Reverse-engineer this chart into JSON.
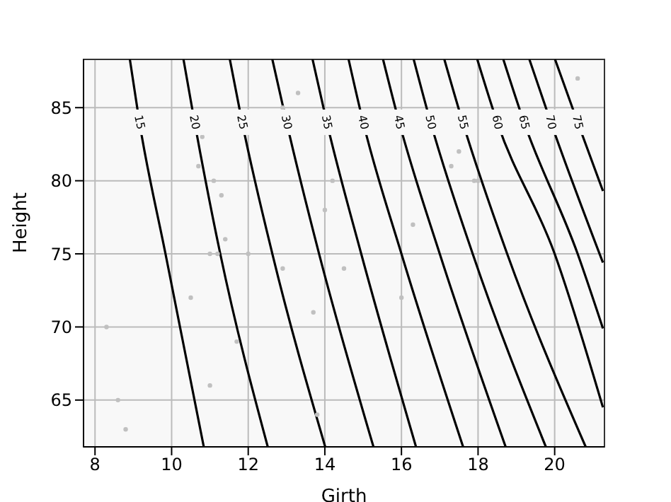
{
  "chart_data": {
    "type": "line",
    "xlabel": "Girth",
    "ylabel": "Height",
    "xlim": [
      7.7,
      21.3
    ],
    "ylim": [
      61.8,
      88.3
    ],
    "xticks": [
      8,
      10,
      12,
      14,
      16,
      18,
      20
    ],
    "yticks": [
      65,
      70,
      75,
      80,
      85
    ],
    "grid": true,
    "legend": false,
    "marker": "none",
    "line_style": "solid",
    "series": [
      {
        "name": "15",
        "color": "#000000",
        "x": [
          8.91,
          9.16,
          9.84,
          10.84
        ],
        "values": [
          88.3,
          84,
          75,
          61.8
        ]
      },
      {
        "name": "20",
        "color": "#000000",
        "x": [
          10.31,
          10.6,
          11.27,
          12.51
        ],
        "values": [
          88.3,
          84,
          75,
          61.8
        ]
      },
      {
        "name": "25",
        "color": "#000000",
        "x": [
          11.52,
          11.84,
          12.63,
          14.01
        ],
        "values": [
          88.3,
          84,
          75,
          61.8
        ]
      },
      {
        "name": "30",
        "color": "#000000",
        "x": [
          12.63,
          13.0,
          13.85,
          15.27
        ],
        "values": [
          88.3,
          84,
          75,
          61.8
        ]
      },
      {
        "name": "35",
        "color": "#000000",
        "x": [
          13.68,
          14.05,
          14.95,
          16.38
        ],
        "values": [
          88.3,
          84,
          75,
          61.8
        ]
      },
      {
        "name": "40",
        "color": "#000000",
        "x": [
          14.62,
          15.0,
          16.0,
          17.61
        ],
        "values": [
          88.3,
          84,
          75,
          61.8
        ]
      },
      {
        "name": "45",
        "color": "#000000",
        "x": [
          15.52,
          15.94,
          17.0,
          18.72
        ],
        "values": [
          88.3,
          84,
          75,
          61.8
        ]
      },
      {
        "name": "50",
        "color": "#000000",
        "x": [
          16.32,
          16.76,
          17.86,
          19.77
        ],
        "values": [
          88.3,
          84,
          75,
          61.8
        ]
      },
      {
        "name": "55",
        "color": "#000000",
        "x": [
          17.12,
          17.6,
          18.76,
          20.81
        ],
        "values": [
          88.3,
          84,
          75,
          61.8
        ]
      },
      {
        "name": "60",
        "color": "#000000",
        "x": [
          17.98,
          18.5,
          20.0,
          21.26
        ],
        "values": [
          88.3,
          84,
          75,
          64.5
        ]
      },
      {
        "name": "65",
        "color": "#000000",
        "x": [
          18.66,
          19.2,
          20.6,
          21.26
        ],
        "values": [
          88.3,
          84,
          75,
          69.9
        ]
      },
      {
        "name": "70",
        "color": "#000000",
        "x": [
          19.34,
          19.9,
          21.26
        ],
        "values": [
          88.3,
          84,
          74.4
        ]
      },
      {
        "name": "75",
        "color": "#000000",
        "x": [
          20.01,
          20.6,
          21.26
        ],
        "values": [
          88.3,
          84,
          79.3
        ]
      },
      {
        "type": "scatter",
        "marker": "circle",
        "color": "#c0c0c0",
        "x": [
          8.3,
          8.6,
          8.8,
          10.5,
          10.7,
          10.8,
          11.0,
          11.0,
          11.1,
          11.2,
          11.3,
          11.4,
          11.7,
          12.0,
          12.9,
          12.9,
          13.3,
          13.7,
          13.8,
          14.0,
          14.2,
          14.5,
          16.0,
          16.3,
          17.3,
          17.5,
          17.9,
          18.0,
          20.6
        ],
        "values": [
          70,
          65,
          63,
          72,
          81,
          83,
          66,
          75,
          80,
          75,
          79,
          76,
          69,
          75,
          74,
          85,
          86,
          71,
          64,
          78,
          80,
          74,
          72,
          77,
          81,
          82,
          80,
          80,
          87
        ]
      }
    ]
  }
}
